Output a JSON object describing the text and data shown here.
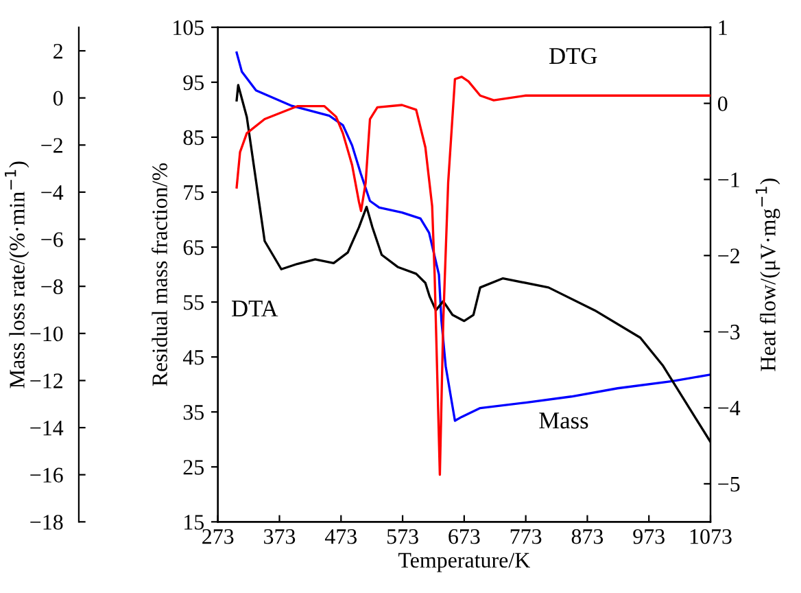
{
  "chart_data": {
    "type": "line",
    "xlabel": "Temperature/K",
    "ylabel": "Residual mass fraction/%",
    "y2label": "Heat flow/(μV·mg$^{−1}$)",
    "y3label": "Mass loss rate/(%·min$^{−1}$)",
    "xlim": [
      273,
      1073
    ],
    "xticks": [
      273,
      373,
      473,
      573,
      673,
      773,
      873,
      973,
      1073
    ],
    "ylim": [
      15,
      105
    ],
    "yticks": [
      15,
      25,
      35,
      45,
      55,
      65,
      75,
      85,
      95,
      105
    ],
    "y2lim": [
      -5.5,
      1
    ],
    "y2ticks": [
      -5,
      -4,
      -3,
      -2,
      -1,
      0,
      1
    ],
    "y3lim": [
      -18,
      3
    ],
    "y3ticks": [
      -18,
      -16,
      -14,
      -12,
      -10,
      -8,
      -6,
      -4,
      -2,
      0,
      2
    ],
    "grid": false,
    "legend": false,
    "marker": "none",
    "line_style": "solid",
    "series": [
      {
        "name": "DTG",
        "color": "#ff0000",
        "axis": "y3",
        "x": [
          303.5,
          309,
          320,
          349,
          402,
          446,
          465,
          476,
          491,
          502,
          505.5,
          513,
          520,
          532,
          572,
          595,
          610,
          621,
          625,
          633.5,
          639,
          647,
          658,
          669,
          680,
          699,
          721,
          773,
          850,
          950,
          1073
        ],
        "values": [
          -3.8,
          -2.3,
          -1.5,
          -0.9,
          -0.35,
          -0.35,
          -0.8,
          -1.5,
          -2.85,
          -4.4,
          -4.8,
          -3.6,
          -0.9,
          -0.4,
          -0.3,
          -0.5,
          -2.1,
          -4.6,
          -7.5,
          -16.0,
          -9.5,
          -3.6,
          0.8,
          0.9,
          0.7,
          0.1,
          -0.1,
          0.1,
          0.1,
          0.1,
          0.1
        ]
      },
      {
        "name": "DTA",
        "color": "#000000",
        "axis": "y2",
        "x": [
          303.5,
          306,
          320,
          335,
          349,
          376,
          402,
          431,
          461,
          484,
          502,
          514.5,
          524,
          539,
          565,
          595,
          610,
          617,
          627,
          639,
          654,
          673,
          688,
          699,
          736,
          810,
          885,
          959,
          996,
          1073
        ],
        "values": [
          0.04,
          0.24,
          -0.18,
          -1.02,
          -1.81,
          -2.18,
          -2.11,
          -2.05,
          -2.1,
          -1.96,
          -1.63,
          -1.36,
          -1.63,
          -1.99,
          -2.15,
          -2.24,
          -2.36,
          -2.54,
          -2.72,
          -2.6,
          -2.78,
          -2.86,
          -2.78,
          -2.42,
          -2.3,
          -2.42,
          -2.72,
          -3.08,
          -3.45,
          -4.45
        ]
      },
      {
        "name": "Mass",
        "color": "#0000ff",
        "axis": "y",
        "x": [
          303.5,
          312,
          335,
          393,
          454,
          476,
          491,
          505,
          520,
          535,
          572,
          602,
          616,
          632,
          636,
          643,
          658,
          669,
          699,
          773,
          847,
          922,
          1011,
          1073
        ],
        "values": [
          100.4,
          96.9,
          93.5,
          90.7,
          88.9,
          87.2,
          83.5,
          78.4,
          73.4,
          72.2,
          71.3,
          70.2,
          67.6,
          60,
          51.7,
          43.3,
          33.4,
          34.1,
          35.7,
          36.7,
          37.8,
          39.3,
          40.6,
          41.8
        ]
      }
    ]
  }
}
